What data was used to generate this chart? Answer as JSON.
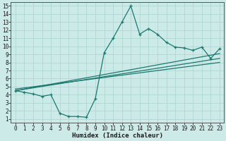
{
  "xlabel": "Humidex (Indice chaleur)",
  "ylabel": "",
  "xlim": [
    -0.5,
    23.5
  ],
  "ylim": [
    0.5,
    15.5
  ],
  "xticks": [
    0,
    1,
    2,
    3,
    4,
    5,
    6,
    7,
    8,
    9,
    10,
    11,
    12,
    13,
    14,
    15,
    16,
    17,
    18,
    19,
    20,
    21,
    22,
    23
  ],
  "yticks": [
    1,
    2,
    3,
    4,
    5,
    6,
    7,
    8,
    9,
    10,
    11,
    12,
    13,
    14,
    15
  ],
  "bg_color": "#cceae7",
  "grid_color": "#aad4d0",
  "line_color": "#1a7a70",
  "line_width": 0.9,
  "marker": "+",
  "marker_size": 3,
  "data_x": [
    0,
    1,
    2,
    3,
    4,
    5,
    6,
    7,
    8,
    9,
    10,
    11,
    12,
    13,
    14,
    15,
    16,
    17,
    18,
    19,
    20,
    21,
    22,
    23
  ],
  "data_y": [
    4.5,
    4.3,
    4.1,
    3.8,
    4.0,
    1.7,
    1.3,
    1.3,
    1.2,
    3.5,
    9.2,
    11.0,
    13.0,
    15.0,
    11.5,
    12.2,
    11.5,
    10.5,
    9.9,
    9.8,
    9.5,
    9.9,
    8.5,
    9.7
  ],
  "trend1_x": [
    0,
    23
  ],
  "trend1_y": [
    4.5,
    8.5
  ],
  "trend2_x": [
    0,
    23
  ],
  "trend2_y": [
    4.5,
    9.1
  ],
  "trend3_x": [
    0,
    23
  ],
  "trend3_y": [
    4.7,
    8.0
  ],
  "label_fontsize": 6.5,
  "tick_fontsize": 5.5,
  "xlabel_fontsize": 6.5
}
